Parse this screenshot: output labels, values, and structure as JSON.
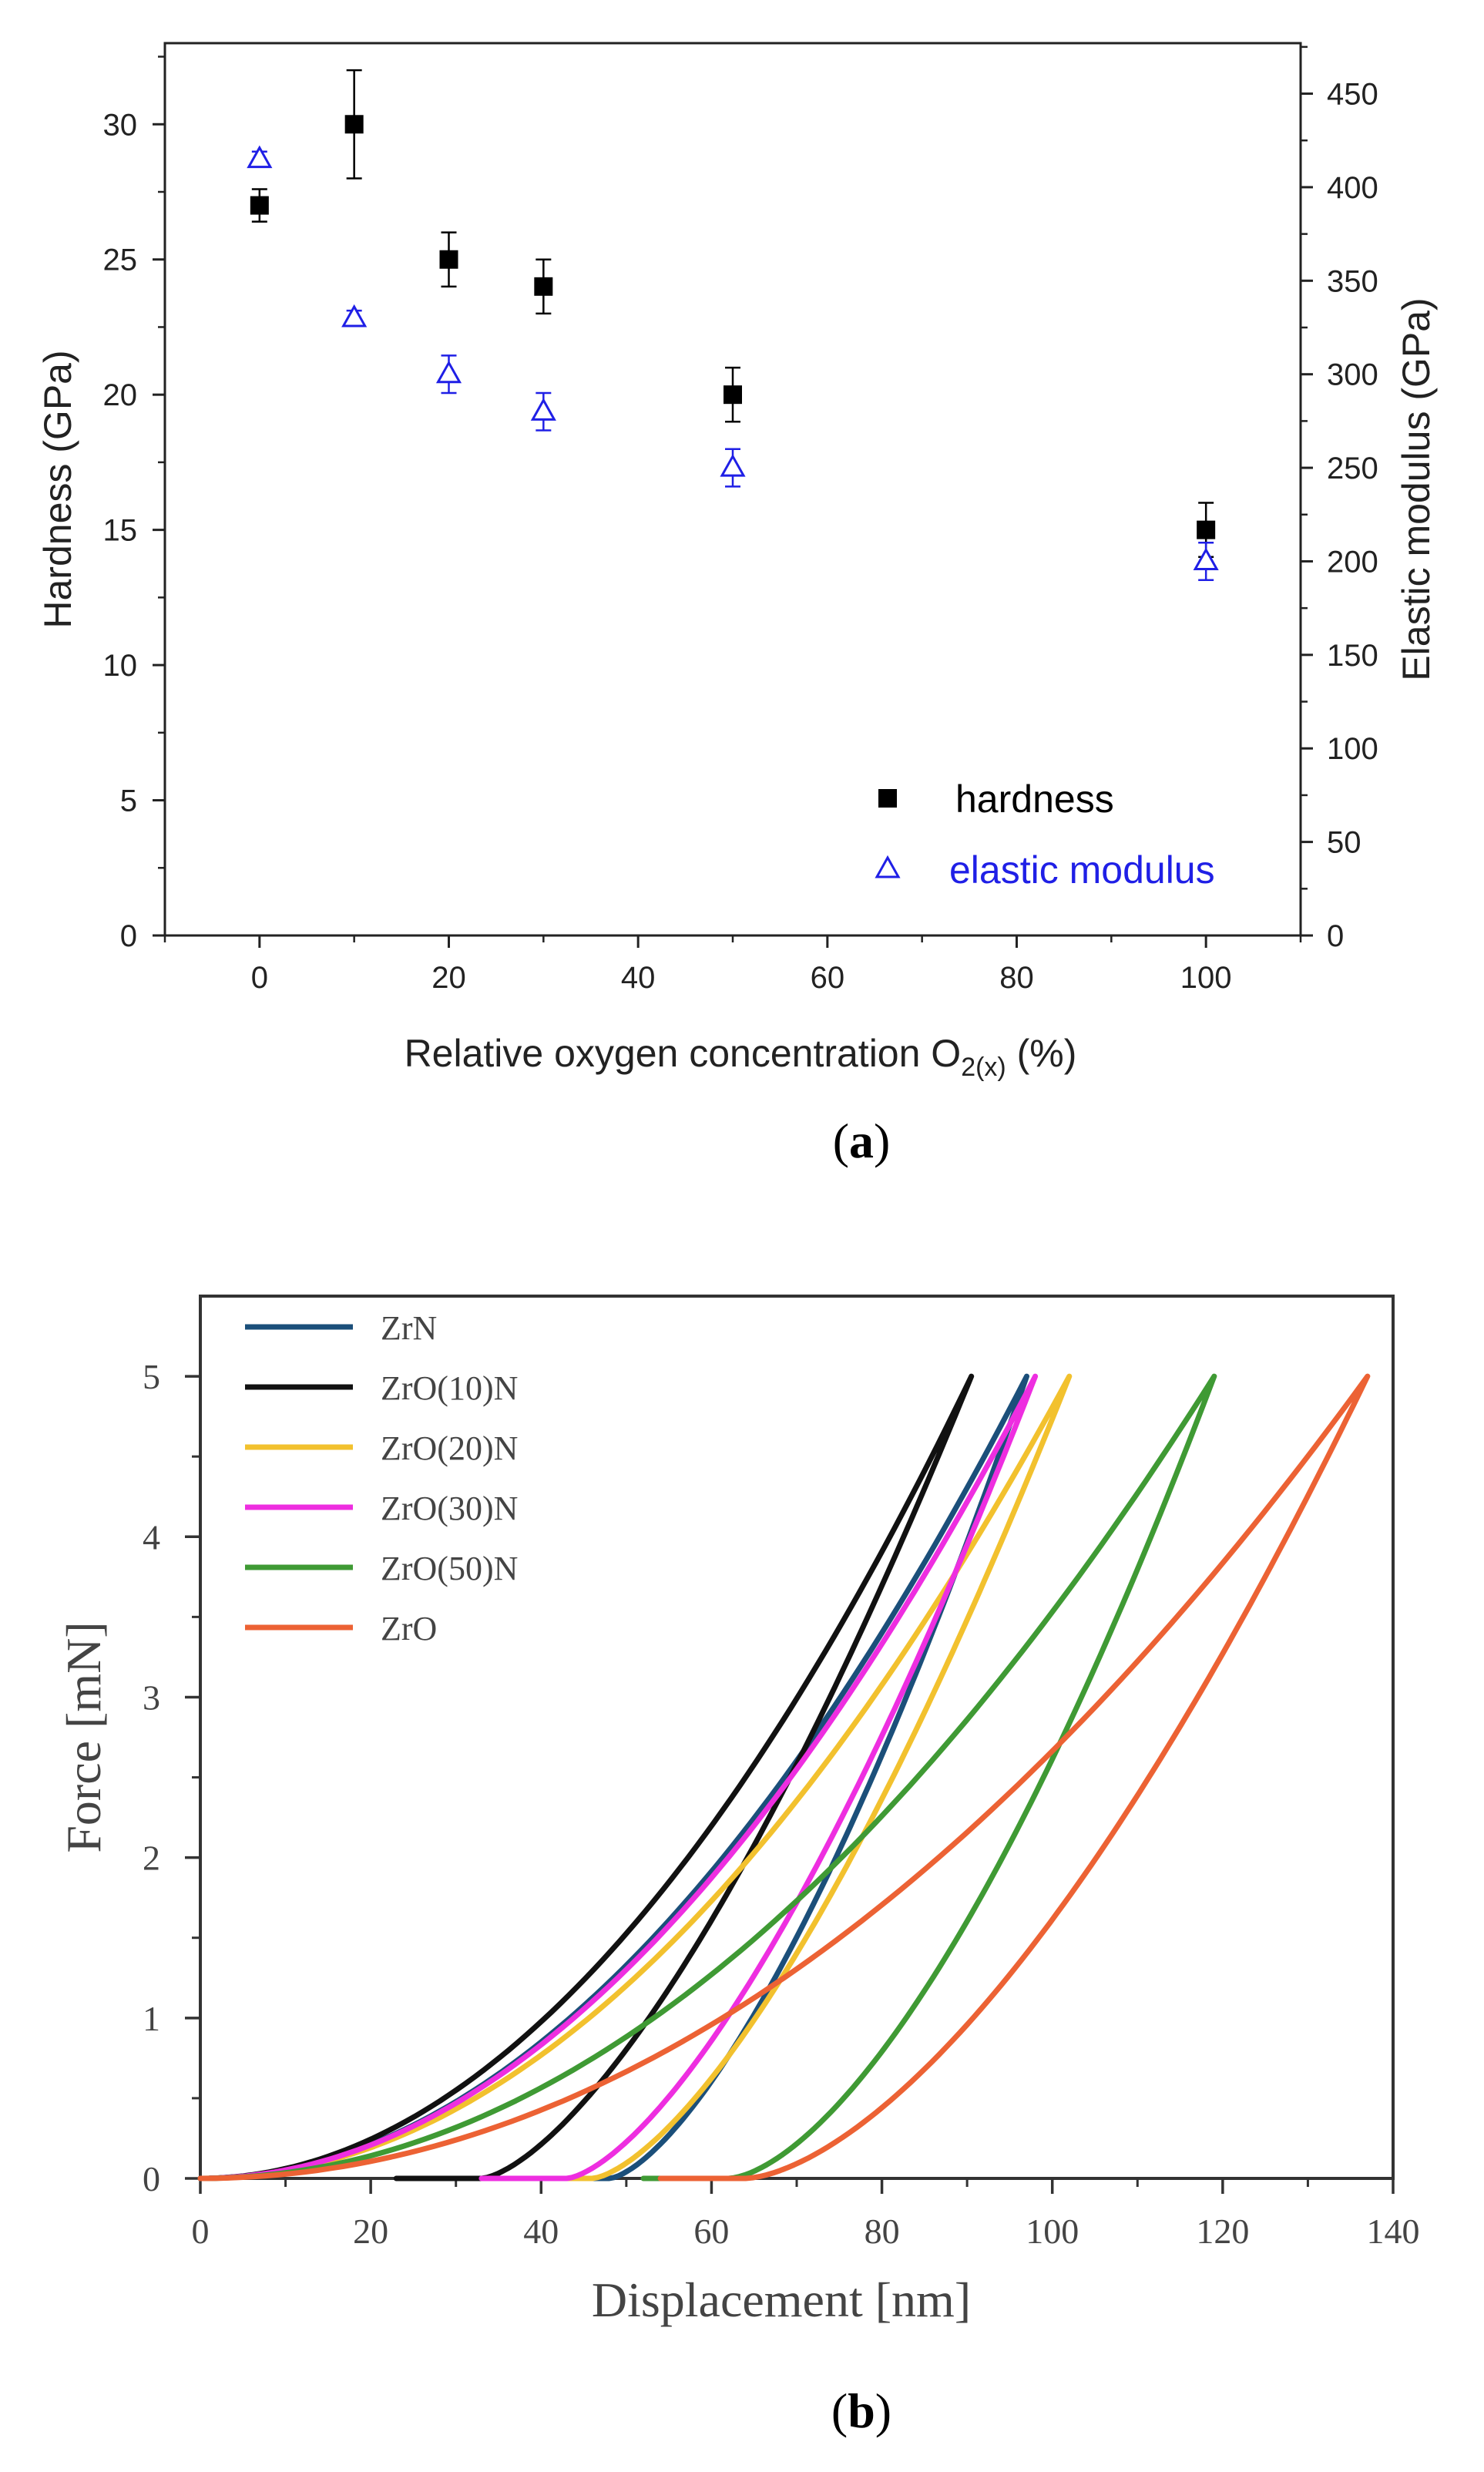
{
  "chart_data": [
    {
      "panel": "(a)",
      "panel_letter": "a",
      "type": "scatter",
      "xlabel": "Relative oxygen concentration O",
      "xlabel_subscript": "2(x)",
      "xlabel_suffix": " (%)",
      "ylabel": "Hardness (GPa)",
      "y2label": "Elastic modulus (GPa)",
      "xlim": [
        -10,
        110
      ],
      "ylim": [
        0,
        33
      ],
      "y2lim": [
        0,
        477
      ],
      "xticks": [
        0,
        20,
        40,
        60,
        80,
        100
      ],
      "yticks": [
        0,
        5,
        10,
        15,
        20,
        25,
        30
      ],
      "y2ticks": [
        0,
        50,
        100,
        150,
        200,
        250,
        300,
        350,
        400,
        450
      ],
      "grid": false,
      "legend_position": "bottom-right",
      "series": [
        {
          "name": "hardness",
          "axis": "left",
          "marker": "square",
          "color": "#000000",
          "x": [
            0,
            10,
            20,
            30,
            50,
            100
          ],
          "y": [
            27,
            30,
            25,
            24,
            20,
            15
          ],
          "err": [
            0.6,
            2,
            1,
            1,
            1,
            1
          ]
        },
        {
          "name": "elastic modulus",
          "axis": "right",
          "marker": "triangle-open",
          "color": "#1f1fe6",
          "x": [
            0,
            10,
            20,
            30,
            50,
            100
          ],
          "y": [
            415,
            330,
            300,
            280,
            250,
            200
          ],
          "err": [
            4,
            4,
            10,
            10,
            10,
            10
          ]
        }
      ]
    },
    {
      "panel": "(b)",
      "panel_letter": "b",
      "type": "line",
      "xlabel": "Displacement [nm]",
      "ylabel": "Force [mN]",
      "xlim": [
        0,
        140
      ],
      "ylim": [
        0,
        5.5
      ],
      "xticks": [
        0,
        20,
        40,
        60,
        80,
        100,
        120,
        140
      ],
      "yticks": [
        0,
        1,
        2,
        3,
        4,
        5
      ],
      "grid": false,
      "legend_position": "top-left",
      "series": [
        {
          "name": "ZrN",
          "color": "#1b4f7a",
          "hmax": 97,
          "hf": 48,
          "fmax": 5,
          "m": 1.5
        },
        {
          "name": "ZrO(10)N",
          "color": "#111111",
          "hmax": 90.5,
          "hf": 33,
          "fmax": 5,
          "m": 1.5
        },
        {
          "name": "ZrO(20)N",
          "color": "#f2c12e",
          "hmax": 102,
          "hf": 46,
          "fmax": 5,
          "m": 1.5
        },
        {
          "name": "ZrO(30)N",
          "color": "#ee2ee0",
          "hmax": 98,
          "hf": 43,
          "fmax": 5,
          "m": 1.5
        },
        {
          "name": "ZrO(50)N",
          "color": "#3f9a34",
          "hmax": 119,
          "hf": 62,
          "fmax": 5,
          "m": 1.6
        },
        {
          "name": "ZrO",
          "color": "#ec6234",
          "hmax": 137,
          "hf": 64,
          "fmax": 5,
          "m": 1.6
        }
      ]
    }
  ]
}
